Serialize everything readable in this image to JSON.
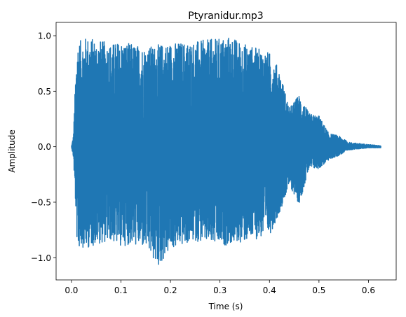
{
  "chart_data": {
    "type": "line",
    "title": "Ptyranidur.mp3",
    "xlabel": "Time (s)",
    "ylabel": "Amplitude",
    "xlim": [
      -0.031,
      0.656
    ],
    "ylim": [
      -1.2,
      1.12
    ],
    "x_ticks": [
      0.0,
      0.1,
      0.2,
      0.3,
      0.4,
      0.5,
      0.6
    ],
    "x_tick_labels": [
      "0.0",
      "0.1",
      "0.2",
      "0.3",
      "0.4",
      "0.5",
      "0.6"
    ],
    "y_ticks": [
      -1.0,
      -0.5,
      0.0,
      0.5,
      1.0
    ],
    "y_tick_labels": [
      "−1.0",
      "−0.5",
      "0.0",
      "0.5",
      "1.0"
    ],
    "grid": false,
    "duration": 0.625,
    "line_color": "#1f77b4",
    "envelope": {
      "t": [
        0.0,
        0.004,
        0.008,
        0.012,
        0.02,
        0.03,
        0.05,
        0.08,
        0.1,
        0.12,
        0.15,
        0.175,
        0.2,
        0.25,
        0.3,
        0.32,
        0.35,
        0.4,
        0.42,
        0.44,
        0.46,
        0.48,
        0.5,
        0.52,
        0.54,
        0.56,
        0.58,
        0.6,
        0.625
      ],
      "max": [
        0.0,
        0.1,
        0.6,
        0.95,
        0.96,
        0.99,
        0.97,
        0.93,
        0.95,
        0.93,
        0.9,
        0.92,
        0.94,
        0.95,
        0.98,
        1.0,
        0.93,
        0.85,
        0.7,
        0.35,
        0.47,
        0.3,
        0.28,
        0.12,
        0.1,
        0.04,
        0.03,
        0.02,
        0.01
      ],
      "min": [
        0.0,
        -0.1,
        -0.5,
        -0.93,
        -0.9,
        -0.92,
        -0.88,
        -0.85,
        -0.9,
        -0.88,
        -0.92,
        -1.09,
        -0.93,
        -0.85,
        -0.9,
        -0.88,
        -0.86,
        -0.8,
        -0.6,
        -0.35,
        -0.52,
        -0.2,
        -0.2,
        -0.12,
        -0.08,
        -0.03,
        -0.02,
        -0.01,
        -0.01
      ]
    }
  }
}
